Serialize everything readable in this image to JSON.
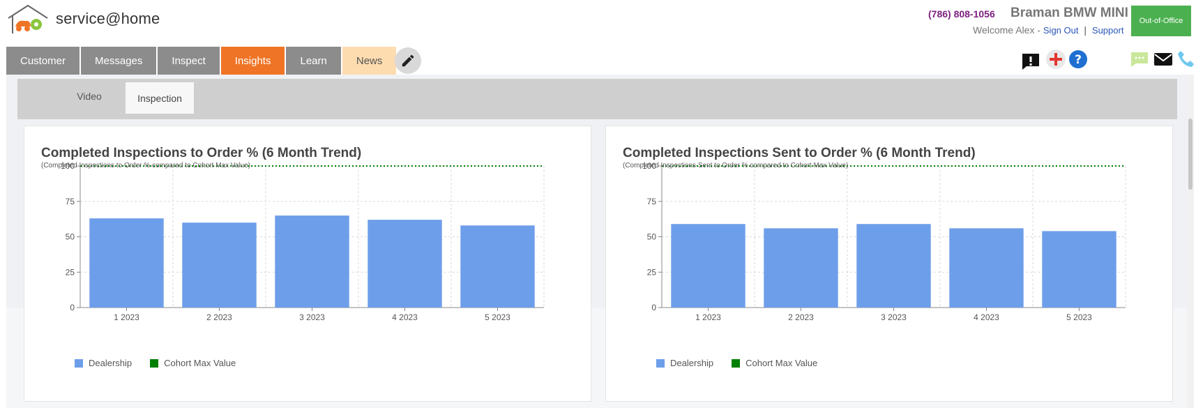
{
  "header": {
    "brand": "service@home",
    "phone": "(786) 808-1056",
    "dealer": "Braman BMW MINI",
    "welcome": "Welcome Alex -",
    "sign_out": "Sign Out",
    "separator": "|",
    "support": "Support",
    "out_of_office": "Out-of-Office"
  },
  "nav": {
    "tabs": [
      {
        "label": "Customer"
      },
      {
        "label": "Messages"
      },
      {
        "label": "Inspect"
      },
      {
        "label": "Insights"
      },
      {
        "label": "Learn"
      },
      {
        "label": "News"
      }
    ],
    "active": "Insights"
  },
  "subtabs": {
    "video": "Video",
    "inspection": "Inspection"
  },
  "colors": {
    "dealership": "#6d9eea",
    "cohort": "#008000",
    "accent": "#f07425"
  },
  "charts": [
    {
      "title": "Completed Inspections to Order % (6 Month Trend)",
      "subtitle": "(Completed Inspections to Order % compared to Cohort Max Value)",
      "legend_dealership": "Dealership",
      "legend_cohort": "Cohort Max Value"
    },
    {
      "title": "Completed Inspections Sent to Order % (6 Month Trend)",
      "subtitle": "(Completed Inspections Sent to Order % compared to Cohort Max Value)",
      "legend_dealership": "Dealership",
      "legend_cohort": "Cohort Max Value"
    }
  ],
  "chart_data": [
    {
      "type": "bar",
      "title": "Completed Inspections to Order % (6 Month Trend)",
      "categories": [
        "1 2023",
        "2 2023",
        "3 2023",
        "4 2023",
        "5 2023"
      ],
      "series": [
        {
          "name": "Dealership",
          "values": [
            63,
            60,
            65,
            62,
            58
          ]
        },
        {
          "name": "Cohort Max Value",
          "values": [
            100,
            100,
            100,
            100,
            100
          ],
          "style": "dotted-line"
        }
      ],
      "yticks": [
        0,
        25,
        50,
        75,
        100
      ],
      "ylim": [
        0,
        100
      ],
      "grid": true,
      "legend": "bottom-left"
    },
    {
      "type": "bar",
      "title": "Completed Inspections Sent to Order % (6 Month Trend)",
      "categories": [
        "1 2023",
        "2 2023",
        "3 2023",
        "4 2023",
        "5 2023"
      ],
      "series": [
        {
          "name": "Dealership",
          "values": [
            59,
            56,
            59,
            56,
            54
          ]
        },
        {
          "name": "Cohort Max Value",
          "values": [
            100,
            100,
            100,
            100,
            100
          ],
          "style": "dotted-line"
        }
      ],
      "yticks": [
        0,
        25,
        50,
        75,
        100
      ],
      "ylim": [
        0,
        100
      ],
      "grid": true,
      "legend": "bottom-left"
    }
  ]
}
